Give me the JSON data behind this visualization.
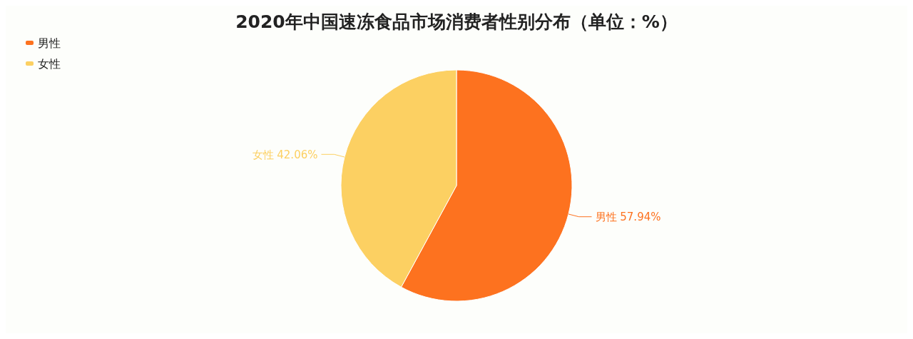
{
  "chart_data": {
    "type": "pie",
    "title": "2020年中国速冻食品市场消费者性别分布（单位：%）",
    "categories": [
      "男性",
      "女性"
    ],
    "values": [
      57.94,
      42.06
    ],
    "colors": [
      "#fd721f",
      "#fcd062"
    ],
    "value_labels": [
      "男性 57.94%",
      "女性 42.06%"
    ],
    "legend": "top left"
  }
}
